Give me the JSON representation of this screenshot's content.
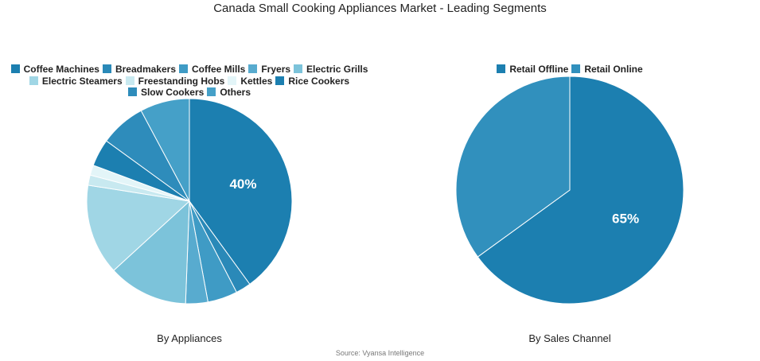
{
  "title": "Canada Small Cooking Appliances Market - Leading Segments",
  "source": "Source: Vyansa Intelligence",
  "chart_data": [
    {
      "type": "pie",
      "subtitle": "By Appliances",
      "legend_position": "top",
      "categories": [
        "Coffee Machines",
        "Breadmakers",
        "Coffee Mills",
        "Fryers",
        "Electric Grills",
        "Electric Steamers",
        "Freestanding Hobs",
        "Kettles",
        "Rice Cookers",
        "Slow Cookers",
        "Others"
      ],
      "values": [
        40,
        2.4,
        4.7,
        3.5,
        12.6,
        14.3,
        1.6,
        1.6,
        4.3,
        7.2,
        7.8
      ],
      "colors": [
        "#1c7fb0",
        "#2a89b8",
        "#3f9bc5",
        "#58abcf",
        "#7cc3da",
        "#a0d6e5",
        "#c8e9f0",
        "#e3f5f8",
        "#1c7fb0",
        "#2e8cbb",
        "#45a0c8"
      ],
      "data_labels": [
        "40%",
        "",
        "",
        "",
        "",
        "",
        "",
        "",
        "",
        "",
        ""
      ]
    },
    {
      "type": "pie",
      "subtitle": "By Sales Channel",
      "legend_position": "top",
      "categories": [
        "Retail Offline",
        "Retail Online"
      ],
      "values": [
        65,
        35
      ],
      "colors": [
        "#1c7fb0",
        "#3190bd"
      ],
      "data_labels": [
        "65%",
        ""
      ]
    }
  ]
}
